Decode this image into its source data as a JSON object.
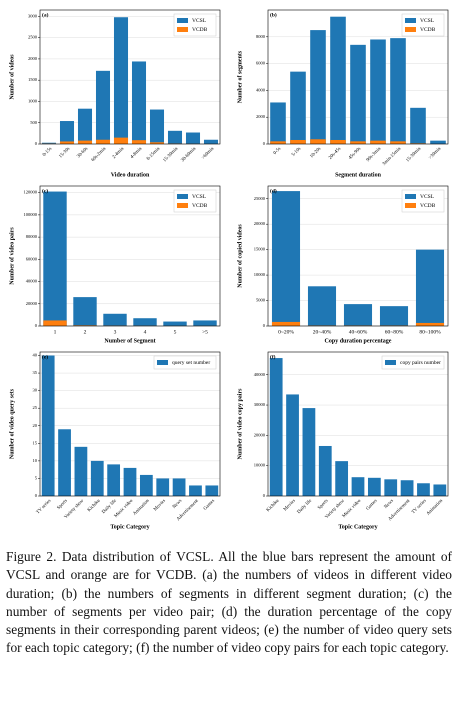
{
  "chart_data": [
    {
      "type": "bar",
      "label": "(a)",
      "xlabel": "Video duration",
      "ylabel": "Number of videos",
      "categories": [
        "0-15s",
        "15-30s",
        "30-60s",
        "60s-2min",
        "2-4min",
        "4-8min",
        "8-15min",
        "15-30min",
        "30-60min",
        ">60min"
      ],
      "series": [
        {
          "name": "VCSL",
          "color": "#1f77b4",
          "values": [
            30,
            540,
            830,
            1720,
            2980,
            1940,
            810,
            310,
            270,
            100
          ]
        },
        {
          "name": "VCDB",
          "color": "#ff7f0e",
          "values": [
            10,
            60,
            80,
            100,
            150,
            90,
            40,
            10,
            5,
            2
          ]
        }
      ],
      "ylim": [
        0,
        3150
      ],
      "yticks": [
        0,
        500,
        1000,
        1500,
        2000,
        2500,
        3000
      ],
      "grid": true,
      "legend": "upper right"
    },
    {
      "type": "bar",
      "label": "(b)",
      "xlabel": "Segment duration",
      "ylabel": "Number of segments",
      "categories": [
        "0-5s",
        "5-10s",
        "10-20s",
        "20s-45s",
        "45s-90s",
        "90s-3min",
        "3min-15min",
        "15-30min",
        ">30min"
      ],
      "series": [
        {
          "name": "VCSL",
          "color": "#1f77b4",
          "values": [
            3100,
            5400,
            8500,
            9500,
            7400,
            7800,
            7900,
            2700,
            250
          ]
        },
        {
          "name": "VCDB",
          "color": "#ff7f0e",
          "values": [
            200,
            300,
            350,
            300,
            200,
            250,
            200,
            50,
            5
          ]
        }
      ],
      "ylim": [
        0,
        10000
      ],
      "yticks": [
        0,
        2000,
        4000,
        6000,
        8000
      ],
      "grid": true,
      "legend": "upper right"
    },
    {
      "type": "bar",
      "label": "(c)",
      "xlabel": "Number of Segment",
      "ylabel": "Number of video pairs",
      "categories": [
        "1",
        "2",
        "3",
        "4",
        "5",
        ">5"
      ],
      "series": [
        {
          "name": "VCSL",
          "color": "#1f77b4",
          "values": [
            121000,
            26000,
            11000,
            7000,
            4000,
            5000
          ]
        },
        {
          "name": "VCDB",
          "color": "#ff7f0e",
          "values": [
            5000,
            600,
            300,
            200,
            100,
            100
          ]
        }
      ],
      "ylim": [
        0,
        126000
      ],
      "yticks": [
        0,
        20000,
        40000,
        60000,
        80000,
        100000,
        120000
      ],
      "grid": true,
      "legend": "upper right"
    },
    {
      "type": "bar",
      "label": "(d)",
      "xlabel": "Copy duration percentage",
      "ylabel": "Number of copied videos",
      "categories": [
        "0~20%",
        "20~40%",
        "40~60%",
        "60~80%",
        "80~100%"
      ],
      "series": [
        {
          "name": "VCSL",
          "color": "#1f77b4",
          "values": [
            26500,
            7800,
            4300,
            3900,
            15000
          ]
        },
        {
          "name": "VCDB",
          "color": "#ff7f0e",
          "values": [
            800,
            100,
            100,
            100,
            600
          ]
        }
      ],
      "ylim": [
        0,
        27500
      ],
      "yticks": [
        0,
        5000,
        10000,
        15000,
        20000,
        25000
      ],
      "grid": true,
      "legend": "upper right"
    },
    {
      "type": "bar",
      "label": "(e)",
      "xlabel": "Topic Category",
      "ylabel": "Number of video query sets",
      "categories": [
        "TV series",
        "Sports",
        "Variety show",
        "Kichiku",
        "Daily life",
        "Music video",
        "Animation",
        "Movies",
        "News",
        "Advertisement",
        "Games"
      ],
      "series": [
        {
          "name": "query set number",
          "color": "#1f77b4",
          "values": [
            40,
            19,
            14,
            10,
            9,
            8,
            6,
            5,
            5,
            3,
            3
          ]
        }
      ],
      "ylim": [
        0,
        41
      ],
      "yticks": [
        0,
        5,
        10,
        15,
        20,
        25,
        30,
        35,
        40
      ],
      "grid": true,
      "legend": "upper right"
    },
    {
      "type": "bar",
      "label": "(f)",
      "xlabel": "Topic Category",
      "ylabel": "Number of video copy pairs",
      "categories": [
        "Kichiku",
        "Movies",
        "Daily life",
        "Sports",
        "Variety show",
        "Music video",
        "Games",
        "News",
        "Advertisement",
        "TV series",
        "Animation"
      ],
      "series": [
        {
          "name": "copy pairs number",
          "color": "#1f77b4",
          "values": [
            45500,
            33500,
            29000,
            16500,
            11500,
            6200,
            6000,
            5500,
            5200,
            4200,
            3800
          ]
        }
      ],
      "ylim": [
        0,
        47500
      ],
      "yticks": [
        0,
        10000,
        20000,
        30000,
        40000
      ],
      "grid": true,
      "legend": "upper right"
    }
  ],
  "caption": "Figure 2. Data distribution of VCSL. All the blue bars represent the amount of VCSL and orange are for VCDB. (a) the numbers of videos in different video duration; (b) the numbers of segments in different segment duration; (c) the number of segments per video pair; (d) the duration percentage of the copy segments in their corresponding parent videos; (e) the number of video query sets for each topic category; (f) the number of video copy pairs for each topic category."
}
